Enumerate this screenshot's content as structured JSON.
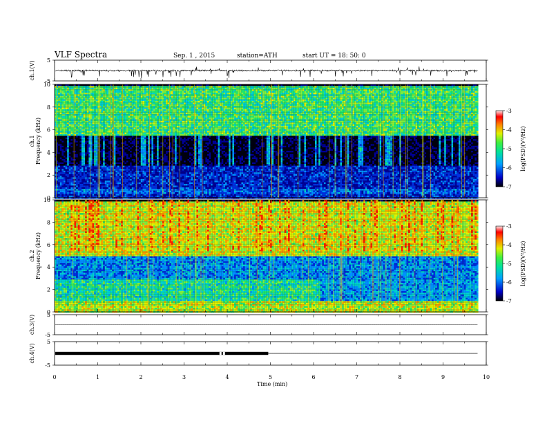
{
  "header": {
    "title": "VLF  Spectra",
    "date": "Sep. 1  , 2015",
    "station": "station=ATH",
    "start": "start  UT  =    18: 50: 0"
  },
  "chart_data": {
    "type": "heatmap",
    "xlabel": "Time  (min)",
    "xlim": [
      0,
      10
    ],
    "x_ticks": [
      "0",
      "1",
      "2",
      "3",
      "4",
      "5",
      "6",
      "7",
      "8",
      "9",
      "10"
    ],
    "data_end_min": 9.8,
    "panels": [
      {
        "id": "ch1v",
        "type": "line",
        "ylabel": "ch.1(V)",
        "ylim": [
          -5,
          5
        ],
        "y_ticks": [
          "5",
          "-5"
        ],
        "baseline": 0.0,
        "note_level": "noisy signal near 0 V with negative spikes"
      },
      {
        "id": "ch1spec",
        "type": "heatmap",
        "ylabel": [
          "ch.1",
          "Frequency  (kHz)"
        ],
        "ylim": [
          0,
          10
        ],
        "y_ticks": [
          "0",
          "2",
          "4",
          "6",
          "8",
          "10"
        ],
        "colorbar": {
          "label": "log(PSD)(V²/Hz)",
          "range": [
            -7,
            -3
          ],
          "ticks": [
            "-3",
            "-4",
            "-5",
            "-6",
            "-7"
          ]
        },
        "bands": [
          {
            "f": [
              0,
              2.9
            ],
            "level": -6.3
          },
          {
            "f": [
              2.9,
              5.5
            ],
            "level": -6.9
          },
          {
            "f": [
              5.5,
              10
            ],
            "level": -5.0
          }
        ]
      },
      {
        "id": "ch2spec",
        "type": "heatmap",
        "ylabel": [
          "ch.2",
          "Frequency  (kHz)"
        ],
        "ylim": [
          0,
          10
        ],
        "y_ticks": [
          "0",
          "2",
          "4",
          "6",
          "8",
          "10"
        ],
        "colorbar": {
          "label": "log(PSD)(V²/Hz)",
          "range": [
            -7,
            -3
          ],
          "ticks": [
            "-3",
            "-4",
            "-5",
            "-6",
            "-7"
          ]
        },
        "bands": [
          {
            "f": [
              0,
              1
            ],
            "level": -4.6
          },
          {
            "f": [
              1,
              3
            ],
            "level": -5.2
          },
          {
            "f": [
              3,
              5
            ],
            "level": -5.8
          },
          {
            "f": [
              5,
              10
            ],
            "level": -4.5
          }
        ]
      },
      {
        "id": "ch3v",
        "type": "line",
        "ylabel": "ch.3(V)",
        "ylim": [
          -5,
          5
        ],
        "y_ticks": [
          "5",
          "-5"
        ],
        "baseline": 0.0
      },
      {
        "id": "ch4v",
        "type": "line",
        "ylabel": "ch.4(V)",
        "ylim": [
          -5,
          5
        ],
        "y_ticks": [
          "5",
          "-5"
        ],
        "baseline": 0.0,
        "note_level": "dense pulse train 0-5 min"
      }
    ]
  }
}
